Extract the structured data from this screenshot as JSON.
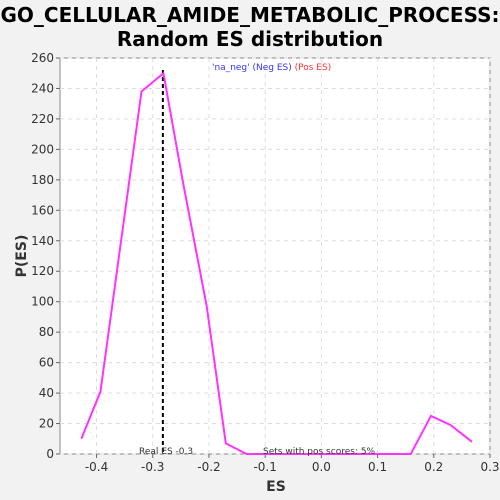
{
  "chart_data": {
    "type": "line",
    "title_line1": "GO_CELLULAR_AMIDE_METABOLIC_PROCESS:",
    "title_line2": "Random ES distribution",
    "xlabel": "ES",
    "ylabel": "P(ES)",
    "xlim": [
      -0.465,
      0.3
    ],
    "ylim": [
      0,
      260
    ],
    "x_ticks": [
      -0.4,
      -0.3,
      -0.2,
      -0.1,
      0.0,
      0.1,
      0.2,
      0.3
    ],
    "x_tick_labels": [
      "-0.4",
      "-0.3",
      "-0.2",
      "-0.1",
      "0.0",
      "0.1",
      "0.2",
      "0.3"
    ],
    "y_ticks": [
      0,
      20,
      40,
      60,
      80,
      100,
      120,
      140,
      160,
      180,
      200,
      220,
      240,
      260
    ],
    "y_tick_labels": [
      "0",
      "20",
      "40",
      "60",
      "80",
      "100",
      "120",
      "140",
      "160",
      "180",
      "200",
      "220",
      "240",
      "260"
    ],
    "grid": true,
    "series": [
      {
        "color": "#ff33ff",
        "x": [
          -0.427,
          -0.393,
          -0.32,
          -0.281,
          -0.246,
          -0.204,
          -0.17,
          -0.133,
          0.159,
          0.195,
          0.23,
          0.268
        ],
        "y": [
          10,
          41,
          238,
          250,
          178,
          97,
          7,
          0,
          0,
          25,
          19,
          8
        ]
      }
    ],
    "real_es": -0.282,
    "real_es_label": "Real ES -0.3",
    "pos_scores_label": "Sets with pos scores: 5%",
    "legend": {
      "part1": "'na_neg' (Neg ES)",
      "part1_color": "#3333ff",
      "part2": "(Pos ES)",
      "part2_color": "#ff3333"
    }
  }
}
